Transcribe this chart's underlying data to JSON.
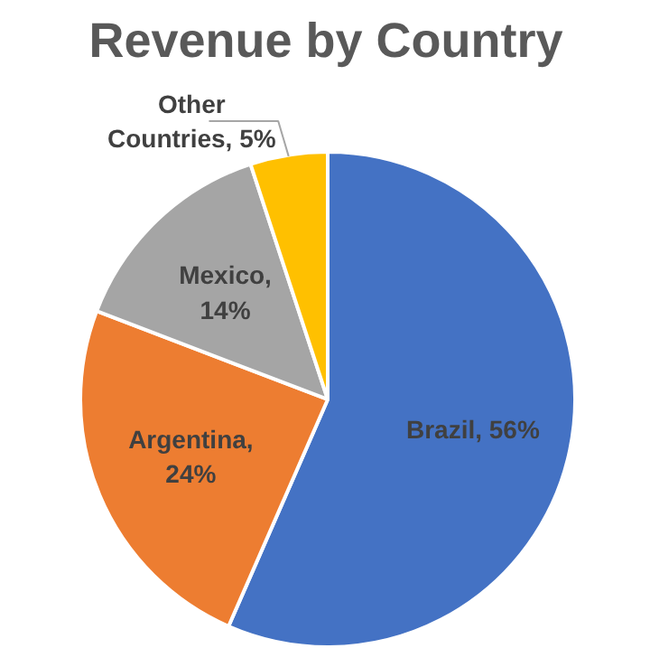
{
  "chart_data": {
    "type": "pie",
    "title": "Revenue by Country",
    "categories": [
      "Brazil",
      "Argentina",
      "Mexico",
      "Other Countries"
    ],
    "values": [
      56,
      24,
      14,
      5
    ],
    "colors": [
      "#4472c4",
      "#ed7d31",
      "#a5a5a5",
      "#ffc000"
    ],
    "value_labels": [
      ", 56%",
      ",\n24%",
      ",\n14%",
      ", 5%"
    ]
  }
}
